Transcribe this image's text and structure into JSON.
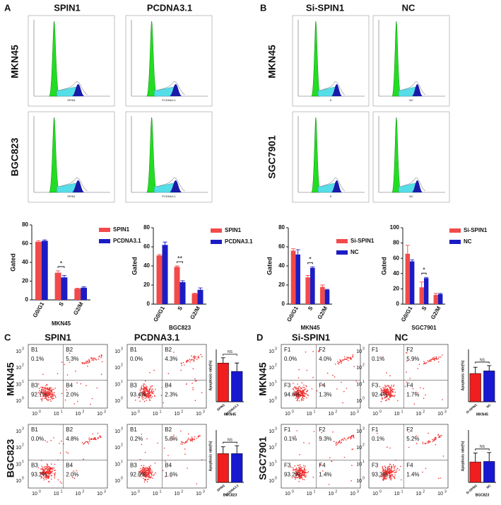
{
  "panels": {
    "A": {
      "label": "A",
      "columns": [
        "SPIN1",
        "PCDNA3.1"
      ],
      "rows": [
        "MKN45",
        "BGC823"
      ],
      "histogram_labels": [
        "SPIN1",
        "PCDNA3.1"
      ]
    },
    "B": {
      "label": "B",
      "columns": [
        "Si-SPIN1",
        "NC"
      ],
      "rows": [
        "MKN45",
        "SGC7901"
      ],
      "histogram_labels": [
        "S",
        "NC"
      ]
    },
    "C": {
      "label": "C",
      "columns": [
        "SPIN1",
        "PCDNA3.1"
      ],
      "rows": [
        "MKN45",
        "BGC823"
      ],
      "quadrants": [
        [
          [
            [
              "B1",
              "0.1%"
            ],
            [
              "B2",
              "5.3%"
            ],
            [
              "B3",
              "92.7%"
            ],
            [
              "B4",
              "2.0%"
            ]
          ],
          [
            [
              "B1",
              "0.0%"
            ],
            [
              "B2",
              "4.3%"
            ],
            [
              "B3",
              "93.4%"
            ],
            [
              "B4",
              "2.3%"
            ]
          ]
        ],
        [
          [
            [
              "B1",
              "0.0%"
            ],
            [
              "B2",
              "4.8%"
            ],
            [
              "B3",
              "93.2%"
            ],
            [
              "B4",
              "2.0%"
            ]
          ],
          [
            [
              "B1",
              "0.2%"
            ],
            [
              "B2",
              "5.6%"
            ],
            [
              "B3",
              "92.6%"
            ],
            [
              "B4",
              "1.6%"
            ]
          ]
        ]
      ]
    },
    "D": {
      "label": "D",
      "columns": [
        "Si-SPIN1",
        "NC"
      ],
      "rows": [
        "MKN45",
        "SGC7901"
      ],
      "quadrants": [
        [
          [
            [
              "F1",
              "0.0%"
            ],
            [
              "F2",
              "4.0%"
            ],
            [
              "F3",
              "94.6%"
            ],
            [
              "F4",
              "1.3%"
            ]
          ],
          [
            [
              "F1",
              "0.1%"
            ],
            [
              "F2",
              "5.9%"
            ],
            [
              "F3",
              "92.4%"
            ],
            [
              "F4",
              "1.7%"
            ]
          ]
        ],
        [
          [
            [
              "F1",
              "0.1%"
            ],
            [
              "F2",
              "5.3%"
            ],
            [
              "F3",
              "93.2%"
            ],
            [
              "F4",
              "1.4%"
            ]
          ],
          [
            [
              "F1",
              "0.1%"
            ],
            [
              "F2",
              "5.2%"
            ],
            [
              "F3",
              "93.3%"
            ],
            [
              "F4",
              "1.4%"
            ]
          ]
        ]
      ]
    }
  },
  "scatter_axis": {
    "base": "10",
    "exponents": [
      "0",
      "1",
      "2",
      "3"
    ]
  },
  "chart_data": [
    {
      "type": "bar",
      "xlabel": "MKN45",
      "ylabel": "Gated",
      "categories": [
        "G0/G1",
        "S",
        "G2/M"
      ],
      "series": [
        {
          "name": "SPIN1",
          "color": "#f24a4a",
          "values": [
            62,
            29,
            12
          ],
          "errors": [
            1,
            2,
            0.5
          ]
        },
        {
          "name": "PCDNA3.1",
          "color": "#1c1cc4",
          "values": [
            63,
            24,
            13
          ],
          "errors": [
            1,
            2,
            1
          ]
        }
      ],
      "ylim": [
        0,
        80
      ],
      "yticks": [
        0,
        20,
        40,
        60,
        80
      ],
      "significance": "*"
    },
    {
      "type": "bar",
      "xlabel": "BGC823",
      "ylabel": "Gated",
      "categories": [
        "G0/G1",
        "S",
        "G2/M"
      ],
      "series": [
        {
          "name": "SPIN1",
          "color": "#f24a4a",
          "values": [
            51,
            39,
            11
          ],
          "errors": [
            1,
            1,
            0.5
          ]
        },
        {
          "name": "PCDNA3.1",
          "color": "#1c1cc4",
          "values": [
            62,
            23,
            15
          ],
          "errors": [
            3,
            1.5,
            2
          ]
        }
      ],
      "ylim": [
        0,
        80
      ],
      "yticks": [
        0,
        20,
        40,
        60,
        80
      ],
      "significance": "**"
    },
    {
      "type": "bar",
      "xlabel": "MKN45",
      "ylabel": "Gated",
      "categories": [
        "G0/G1",
        "S",
        "G2/M"
      ],
      "series": [
        {
          "name": "Si-SPIN1",
          "color": "#f24a4a",
          "values": [
            56,
            28,
            18
          ],
          "errors": [
            2,
            2,
            2
          ]
        },
        {
          "name": "NC",
          "color": "#1c1cc4",
          "values": [
            52,
            38,
            15
          ],
          "errors": [
            5,
            1,
            0.5
          ]
        }
      ],
      "ylim": [
        0,
        80
      ],
      "yticks": [
        0,
        20,
        40,
        60,
        80
      ],
      "significance": "*"
    },
    {
      "type": "bar",
      "xlabel": "SGC7901",
      "ylabel": "Gated",
      "categories": [
        "G0/G1",
        "S",
        "G2/M"
      ],
      "series": [
        {
          "name": "Si-SPIN1",
          "color": "#f24a4a",
          "values": [
            66,
            22,
            12
          ],
          "errors": [
            11,
            7,
            2
          ]
        },
        {
          "name": "NC",
          "color": "#1c1cc4",
          "values": [
            56,
            34,
            13
          ],
          "errors": [
            2,
            1,
            1
          ]
        }
      ],
      "ylim": [
        0,
        100
      ],
      "yticks": [
        0,
        20,
        40,
        60,
        80,
        100
      ],
      "significance": "*"
    },
    {
      "type": "bar",
      "xlabel": "MKN45",
      "ylabel": "Apoptosis rate(%)",
      "categories": [
        "SPIN1",
        "PCDNA3.1"
      ],
      "colors": [
        "#f01e1e",
        "#1818d0"
      ],
      "values": [
        7.4,
        5.8
      ],
      "errors": [
        1.0,
        1.6
      ],
      "ylim": [
        0,
        10
      ],
      "significance": "NS"
    },
    {
      "type": "bar",
      "xlabel": "BGC823",
      "ylabel": "Apoptosis rate(%)",
      "categories": [
        "SPIN1",
        "PCDNA3.1"
      ],
      "colors": [
        "#f01e1e",
        "#1818d0"
      ],
      "values": [
        5.5,
        5.5
      ],
      "errors": [
        1.3,
        1.5
      ],
      "ylim": [
        0,
        10
      ],
      "significance": "NS"
    },
    {
      "type": "bar",
      "xlabel": "MKN45",
      "ylabel": "Apoptosis rate(%)",
      "categories": [
        "Si-SPIN1",
        "NC"
      ],
      "colors": [
        "#f01e1e",
        "#1818d0"
      ],
      "values": [
        5.4,
        5.9
      ],
      "errors": [
        1.2,
        1.0
      ],
      "ylim": [
        0,
        10
      ],
      "significance": "NS"
    },
    {
      "type": "bar",
      "xlabel": "BGC823",
      "ylabel": "Apoptosis rate(%)",
      "categories": [
        "Si-SPIN1",
        "NC"
      ],
      "colors": [
        "#f01e1e",
        "#1818d0"
      ],
      "values": [
        3.9,
        4.0
      ],
      "errors": [
        1.7,
        1.7
      ],
      "ylim": [
        0,
        10
      ],
      "significance": "NS"
    }
  ]
}
